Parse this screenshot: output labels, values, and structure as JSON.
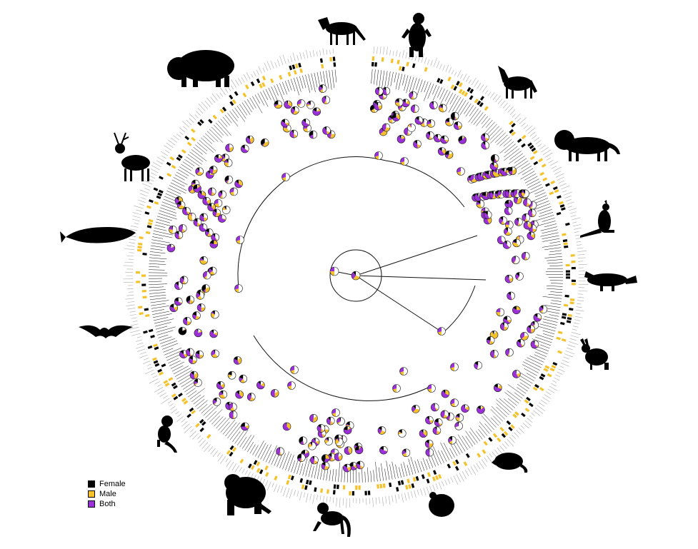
{
  "legend": {
    "items": [
      {
        "label": "Female",
        "color": "#000000"
      },
      {
        "label": "Male",
        "color": "#f5c22b"
      },
      {
        "label": "Both",
        "color": "#9b30d9"
      }
    ]
  },
  "colors": {
    "female": "#000000",
    "male": "#f5c22b",
    "both": "#9b30d9",
    "none": "#ffffff",
    "branch": "#111111",
    "tick_label": "#aaaaaa"
  },
  "silhouettes": [
    {
      "name": "zebra",
      "icon": "zebra-icon"
    },
    {
      "name": "bear",
      "icon": "bear-icon"
    },
    {
      "name": "wolf",
      "icon": "wolf-icon"
    },
    {
      "name": "lion",
      "icon": "lion-icon"
    },
    {
      "name": "kangaroo",
      "icon": "kangaroo-icon"
    },
    {
      "name": "platypus",
      "icon": "platypus-icon"
    },
    {
      "name": "hare",
      "icon": "hare-icon"
    },
    {
      "name": "rat",
      "icon": "rat-icon"
    },
    {
      "name": "hamster",
      "icon": "hamster-icon"
    },
    {
      "name": "macaque",
      "icon": "macaque-icon"
    },
    {
      "name": "gorilla",
      "icon": "gorilla-icon"
    },
    {
      "name": "tamarin",
      "icon": "tamarin-icon"
    },
    {
      "name": "bat",
      "icon": "bat-icon"
    },
    {
      "name": "whale",
      "icon": "whale-icon"
    },
    {
      "name": "deer",
      "icon": "deer-icon"
    },
    {
      "name": "bison",
      "icon": "bison-icon"
    }
  ]
}
